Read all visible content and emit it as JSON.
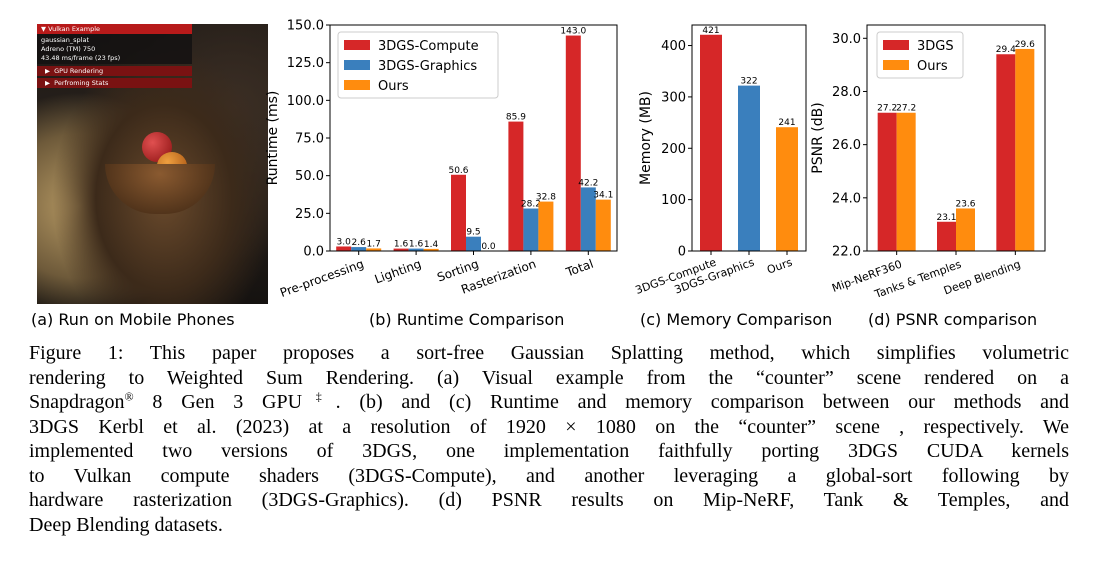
{
  "phone": {
    "panel_title": "Vulkan Example",
    "app_name": "gaussian_splat",
    "gpu_name": "Adreno (TM) 750",
    "frame_stats": "43.48 ms/frame (23 fps)",
    "menu_items": [
      "GPU Rendering",
      "Perfroming Stats"
    ]
  },
  "subcaptions": {
    "a": "(a) Run on Mobile Phones",
    "b": "(b) Runtime Comparison",
    "c": "(c) Memory Comparison",
    "d": "(d) PSNR comparison"
  },
  "caption": {
    "line1": "Figure 1: This paper proposes a sort-free Gaussian Splatting method, which simplifies volumetric",
    "line2": "rendering to Weighted Sum Rendering. (a) Visual example from the “counter” scene rendered on a",
    "line3_a": "Snapdragon",
    "line3_reg": "®",
    "line3_b": " 8 Gen 3 GPU",
    "line3_dagger": "‡",
    "line3_c": ". (b) and (c) Runtime and memory comparison between our methods and",
    "line4": "3DGS Kerbl et al. (2023) at a resolution of 1920 × 1080 on the “counter” scene , respectively. We",
    "line5": "implemented two versions of 3DGS, one implementation faithfully porting 3DGS CUDA kernels",
    "line6": "to Vulkan compute shaders (3DGS-Compute), and another leveraging a global-sort following by",
    "line7": "hardware rasterization (3DGS-Graphics). (d) PSNR results on Mip-NeRF, Tank & Temples, and",
    "line8": "Deep Blending datasets."
  },
  "colors": {
    "red": "#d62728",
    "blue": "#3a7fbd",
    "orange": "#ff8c0e"
  },
  "chart_data": [
    {
      "id": "runtime",
      "type": "bar",
      "ylabel": "Runtime (ms)",
      "ylim": [
        0,
        150
      ],
      "yticks": [
        "0.0",
        "25.0",
        "50.0",
        "75.0",
        "100.0",
        "125.0",
        "150.0"
      ],
      "categories": [
        "Pre-processing",
        "Lighting",
        "Sorting",
        "Rasterization",
        "Total"
      ],
      "series": [
        {
          "name": "3DGS-Compute",
          "values": [
            3.0,
            1.6,
            50.6,
            85.9,
            143.0
          ],
          "labels": [
            "3.0",
            "1.6",
            "50.6",
            "85.9",
            "143.0"
          ]
        },
        {
          "name": "3DGS-Graphics",
          "values": [
            2.6,
            1.6,
            9.5,
            28.2,
            42.2
          ],
          "labels": [
            "2.6",
            "1.6",
            "9.5",
            "28.2",
            "42.2"
          ]
        },
        {
          "name": "Ours",
          "values": [
            1.7,
            1.4,
            0.0,
            32.8,
            34.1
          ],
          "labels": [
            "1.7",
            "1.4",
            "0.0",
            "32.8",
            "34.1"
          ]
        }
      ],
      "legend": "top-left"
    },
    {
      "id": "memory",
      "type": "bar",
      "ylabel": "Memory (MB)",
      "ylim": [
        0,
        440
      ],
      "yticks": [
        "0",
        "100",
        "200",
        "300",
        "400"
      ],
      "categories": [
        "3DGS-Compute",
        "3DGS-Graphics",
        "Ours"
      ],
      "values": [
        421,
        322,
        241
      ],
      "labels": [
        "421",
        "322",
        "241"
      ]
    },
    {
      "id": "psnr",
      "type": "bar",
      "ylabel": "PSNR (dB)",
      "ylim": [
        22.0,
        30.5
      ],
      "yticks": [
        "22.0",
        "24.0",
        "26.0",
        "28.0",
        "30.0"
      ],
      "categories": [
        "Mip-NeRF360",
        "Tanks & Temples",
        "Deep Blending"
      ],
      "series": [
        {
          "name": "3DGS",
          "values": [
            27.2,
            23.1,
            29.4
          ],
          "labels": [
            "27.2",
            "23.1",
            "29.4"
          ]
        },
        {
          "name": "Ours",
          "values": [
            27.2,
            23.6,
            29.6
          ],
          "labels": [
            "27.2",
            "23.6",
            "29.6"
          ]
        }
      ],
      "legend": "top-left"
    }
  ]
}
